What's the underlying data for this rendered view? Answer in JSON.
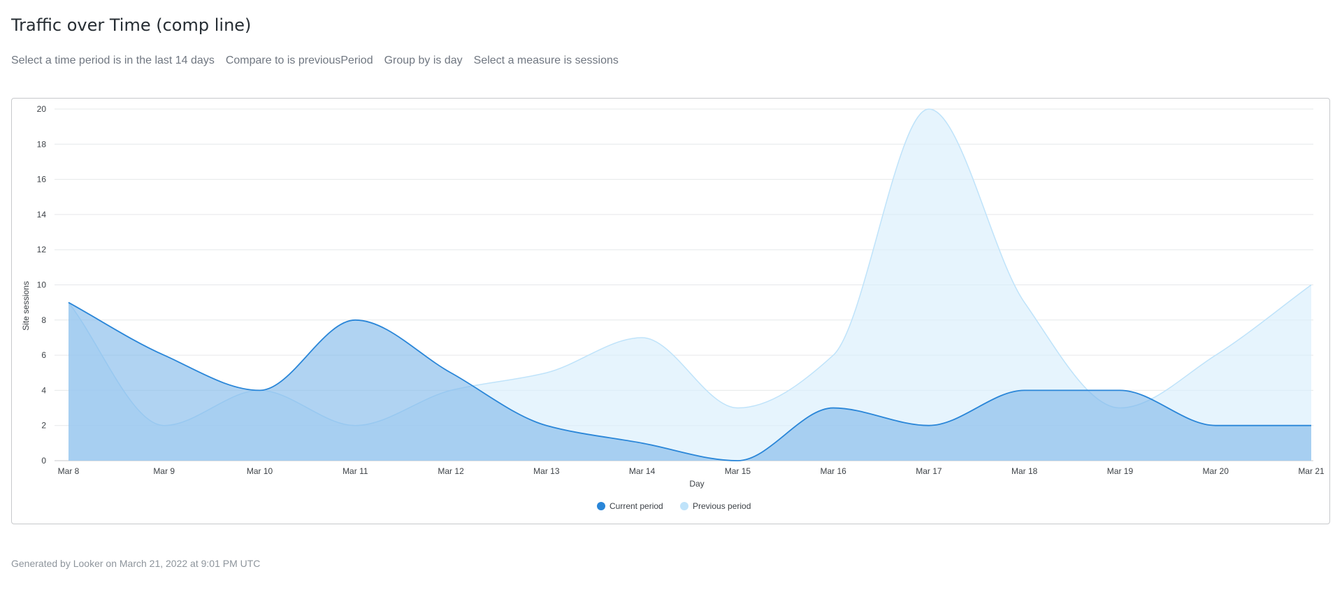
{
  "header": {
    "title": "Traffic over Time (comp line)"
  },
  "filters": [
    "Select a time period is in the last 14 days",
    "Compare to is previousPeriod",
    "Group by is day",
    "Select a measure is sessions"
  ],
  "footer": {
    "text": "Generated by Looker on March 21, 2022 at 9:01 PM UTC"
  },
  "chart_data": {
    "type": "area",
    "title": "",
    "xlabel": "Day",
    "ylabel": "Site sessions",
    "ylim": [
      0,
      20
    ],
    "yticks": [
      0,
      2,
      4,
      6,
      8,
      10,
      12,
      14,
      16,
      18,
      20
    ],
    "grid": true,
    "legend": "bottom-center",
    "categories": [
      "Mar 8",
      "Mar 9",
      "Mar 10",
      "Mar 11",
      "Mar 12",
      "Mar 13",
      "Mar 14",
      "Mar 15",
      "Mar 16",
      "Mar 17",
      "Mar 18",
      "Mar 19",
      "Mar 20",
      "Mar 21"
    ],
    "series": [
      {
        "name": "Previous period",
        "color": "#bfe3fa",
        "fill": "#d8eefc",
        "values": [
          9,
          2,
          4,
          2,
          4,
          5,
          7,
          3,
          6,
          20,
          9,
          3,
          6,
          10
        ]
      },
      {
        "name": "Current period",
        "color": "#2a86d8",
        "fill": "#7fb8ea",
        "values": [
          9,
          6,
          4,
          8,
          5,
          2,
          1,
          0,
          3,
          2,
          4,
          4,
          2,
          2
        ]
      }
    ]
  }
}
